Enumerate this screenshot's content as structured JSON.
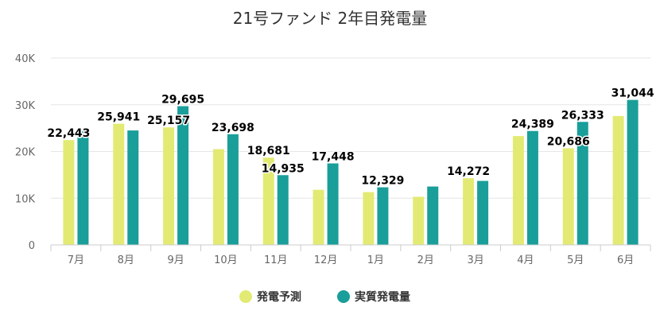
{
  "chart_data": {
    "type": "bar",
    "title": "21号ファンド 2年目発電量",
    "xlabel": "",
    "ylabel": "",
    "categories": [
      "7月",
      "8月",
      "9月",
      "10月",
      "11月",
      "12月",
      "1月",
      "2月",
      "3月",
      "4月",
      "5月",
      "6月"
    ],
    "ylim": [
      0,
      40000
    ],
    "yticks": [
      0,
      10000,
      20000,
      30000,
      40000
    ],
    "ytick_labels": [
      "0",
      "10K",
      "20K",
      "30K",
      "40K"
    ],
    "grid": true,
    "legend_position": "bottom",
    "series": [
      {
        "name": "発電予測",
        "color": "#e2ea73",
        "values": [
          22443,
          25941,
          25157,
          20500,
          18681,
          11800,
          11300,
          10300,
          14272,
          23300,
          20686,
          27600
        ],
        "labels": [
          "22,443",
          "25,941",
          "25,157",
          "",
          "18,681",
          "",
          "",
          "",
          "14,272",
          "",
          "20,686",
          ""
        ]
      },
      {
        "name": "実質発電量",
        "color": "#1a9e9a",
        "values": [
          24300,
          24500,
          29695,
          23698,
          14935,
          17448,
          12329,
          12500,
          13700,
          24389,
          26333,
          31044
        ],
        "labels": [
          "",
          "",
          "29,695",
          "23,698",
          "14,935",
          "17,448",
          "12,329",
          "",
          "",
          "24,389",
          "26,333",
          "31,044"
        ]
      }
    ]
  }
}
